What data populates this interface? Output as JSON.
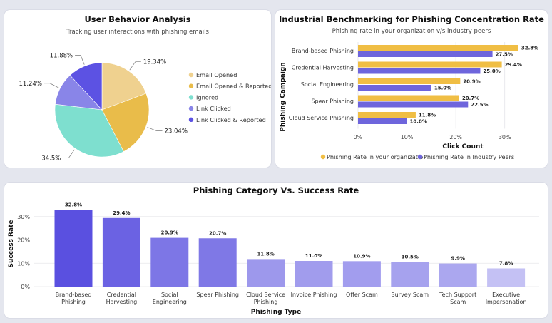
{
  "colors": {
    "org": "#f0be44",
    "industry": "#6e65dc"
  },
  "chart_data": [
    {
      "type": "pie",
      "title": "User Behavior Analysis",
      "subtitle": "Tracking user interactions with phishing emails",
      "slices": [
        {
          "label": "Email Opened",
          "value": 19.34,
          "display": "19.34%",
          "color": "#efd18f"
        },
        {
          "label": "Email Opened & Reported",
          "value": 23.04,
          "display": "23.04%",
          "color": "#e9bc4a"
        },
        {
          "label": "Ignored",
          "value": 34.5,
          "display": "34.5%",
          "color": "#7edfcf"
        },
        {
          "label": "Link Clicked",
          "value": 11.24,
          "display": "11.24%",
          "color": "#8985e8"
        },
        {
          "label": "Link Clicked & Reported",
          "value": 11.88,
          "display": "11.88%",
          "color": "#5c52e3"
        }
      ]
    },
    {
      "type": "bar",
      "orientation": "horizontal",
      "title": "Industrial Benchmarking for Phishing Concentration Rate",
      "subtitle": "Phishing rate in your organization v/s industry peers",
      "categories": [
        "Brand-based Phishing",
        "Credential Harvesting",
        "Social Engineering",
        "Spear Phishing",
        "Cloud Service Phishing"
      ],
      "series": [
        {
          "name": "Phishing Rate in your organization",
          "values": [
            32.8,
            29.4,
            20.9,
            20.7,
            11.8
          ],
          "labels": [
            "32.8%",
            "29.4%",
            "20.9%",
            "20.7%",
            "11.8%"
          ]
        },
        {
          "name": "Phishing Rate in Industry Peers",
          "values": [
            27.5,
            25.0,
            15.0,
            22.5,
            10.0
          ],
          "labels": [
            "27.5%",
            "25.0%",
            "15.0%",
            "22.5%",
            "10.0%"
          ]
        }
      ],
      "xlabel": "Click Count",
      "ylabel": "Phishing Campaign",
      "xlim": [
        0,
        35
      ],
      "xticks": [
        0,
        10,
        20,
        30
      ],
      "xtick_labels": [
        "0%",
        "10%",
        "20%",
        "30%"
      ],
      "legend": "bottom"
    },
    {
      "type": "bar",
      "title": "Phishing Category Vs. Success Rate",
      "categories": [
        [
          "Brand-based",
          "Phishing"
        ],
        [
          "Credential",
          "Harvesting"
        ],
        [
          "Social",
          "Engineering"
        ],
        [
          "Spear Phishing"
        ],
        [
          "Cloud Service",
          "Phishing"
        ],
        [
          "Invoice Phishing"
        ],
        [
          "Offer Scam"
        ],
        [
          "Survey Scam"
        ],
        [
          "Tech Support",
          "Scam"
        ],
        [
          "Executive",
          "Impersonation"
        ]
      ],
      "values": [
        32.8,
        29.4,
        20.9,
        20.7,
        11.8,
        11.0,
        10.9,
        10.5,
        9.9,
        7.8
      ],
      "labels": [
        "32.8%",
        "29.4%",
        "20.9%",
        "20.7%",
        "11.8%",
        "11.0%",
        "10.9%",
        "10.5%",
        "9.9%",
        "7.8%"
      ],
      "colors": [
        "#5a50e0",
        "#6b62e3",
        "#7d76e6",
        "#7f78e6",
        "#9d98ec",
        "#a19ced",
        "#a29dee",
        "#a6a2ee",
        "#aba7ef",
        "#c4c1f4"
      ],
      "xlabel": "Phishing Type",
      "ylabel": "Success Rate",
      "ylim": [
        0,
        33
      ],
      "yticks": [
        0,
        10,
        20,
        30
      ],
      "ytick_labels": [
        "0%",
        "10%",
        "20%",
        "30%"
      ]
    }
  ]
}
